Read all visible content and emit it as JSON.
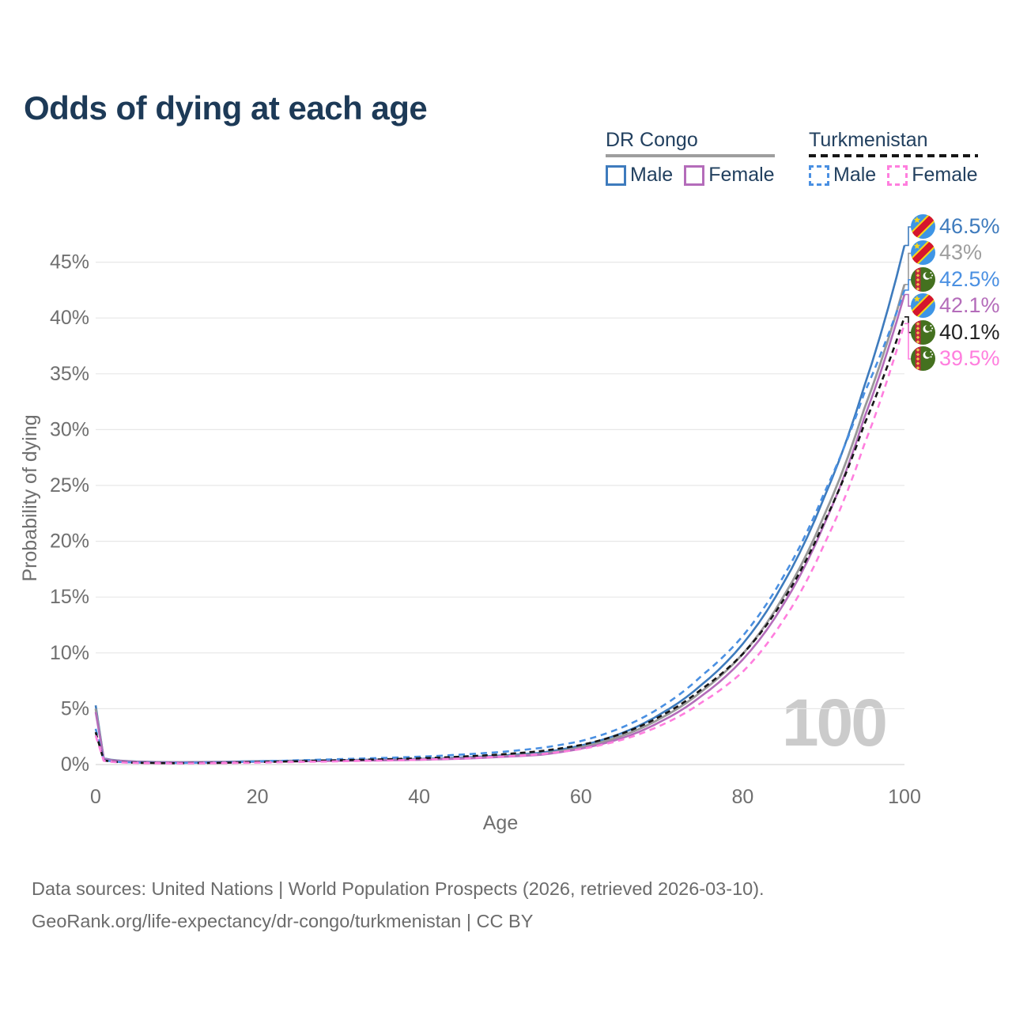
{
  "title": "Odds of dying at each age",
  "watermark": "100",
  "legend": {
    "groups": [
      {
        "name": "DR Congo",
        "style": "solid",
        "items": [
          {
            "label": "Male",
            "series": "cd_male"
          },
          {
            "label": "Female",
            "series": "cd_female"
          }
        ]
      },
      {
        "name": "Turkmenistan",
        "style": "dashed",
        "items": [
          {
            "label": "Male",
            "series": "tm_male"
          },
          {
            "label": "Female",
            "series": "tm_female"
          }
        ]
      }
    ]
  },
  "footer": {
    "line1": "Data sources: United Nations | World Population Prospects (2026, retrieved 2026-03-10).",
    "line2": "GeoRank.org/life-expectancy/dr-congo/turkmenistan | CC BY"
  },
  "chart_data": {
    "type": "line",
    "title": "Odds of dying at each age",
    "xlabel": "Age",
    "ylabel": "Probability of dying",
    "xlim": [
      0,
      100
    ],
    "ylim_pct": [
      0,
      48
    ],
    "grid": "horizontal",
    "x_ticks": [
      0,
      20,
      40,
      60,
      80,
      100
    ],
    "x_tick_labels": [
      "0",
      "20",
      "40",
      "60",
      "80",
      "100"
    ],
    "y_ticks_pct": [
      0,
      5,
      10,
      15,
      20,
      25,
      30,
      35,
      40,
      45
    ],
    "y_tick_labels": [
      "0%",
      "5%",
      "10%",
      "15%",
      "20%",
      "25%",
      "30%",
      "35%",
      "40%",
      "45%"
    ],
    "hover_age_indicator": "100",
    "ages": [
      0,
      1,
      2,
      3,
      5,
      8,
      10,
      15,
      20,
      25,
      30,
      35,
      40,
      45,
      50,
      55,
      60,
      65,
      70,
      75,
      80,
      85,
      90,
      95,
      100
    ],
    "series": [
      {
        "id": "cd_male",
        "name": "DR Congo Male",
        "color": "#3e7bbd",
        "dash": null,
        "width": 2.6,
        "flag": "cd",
        "values_pct": [
          5.3,
          0.55,
          0.42,
          0.35,
          0.27,
          0.22,
          0.21,
          0.24,
          0.3,
          0.35,
          0.39,
          0.44,
          0.5,
          0.62,
          0.8,
          1.05,
          1.7,
          2.8,
          4.6,
          7.2,
          10.8,
          16.2,
          23.8,
          33.8,
          46.5
        ]
      },
      {
        "id": "cd_both",
        "name": "DR Congo Both sexes",
        "color": "#999999",
        "dash": null,
        "width": 2.8,
        "flag": "cd",
        "values_pct": [
          5.0,
          0.52,
          0.39,
          0.33,
          0.25,
          0.21,
          0.2,
          0.22,
          0.27,
          0.32,
          0.36,
          0.4,
          0.46,
          0.56,
          0.73,
          0.95,
          1.55,
          2.55,
          4.2,
          6.6,
          9.9,
          15.0,
          22.2,
          31.8,
          43.0
        ]
      },
      {
        "id": "cd_female",
        "name": "DR Congo Female",
        "color": "#b46cba",
        "dash": null,
        "width": 2.6,
        "flag": "cd",
        "values_pct": [
          4.7,
          0.5,
          0.37,
          0.31,
          0.24,
          0.2,
          0.19,
          0.21,
          0.25,
          0.29,
          0.33,
          0.37,
          0.42,
          0.52,
          0.67,
          0.87,
          1.42,
          2.35,
          3.9,
          6.2,
          9.4,
          14.3,
          21.4,
          31.0,
          42.1
        ]
      },
      {
        "id": "tm_male",
        "name": "Turkmenistan Male",
        "color": "#4a90e2",
        "dash": "8 6",
        "width": 2.6,
        "flag": "tm",
        "values_pct": [
          3.2,
          0.4,
          0.28,
          0.23,
          0.18,
          0.15,
          0.14,
          0.18,
          0.28,
          0.38,
          0.48,
          0.58,
          0.7,
          0.88,
          1.12,
          1.48,
          2.1,
          3.3,
          5.2,
          8.0,
          11.5,
          16.8,
          24.2,
          33.2,
          42.5
        ]
      },
      {
        "id": "tm_both",
        "name": "Turkmenistan Both sexes",
        "color": "#161616",
        "dash": "7 5",
        "width": 2.6,
        "flag": "tm",
        "values_pct": [
          2.9,
          0.37,
          0.26,
          0.21,
          0.16,
          0.13,
          0.12,
          0.15,
          0.22,
          0.3,
          0.38,
          0.46,
          0.56,
          0.7,
          0.9,
          1.2,
          1.75,
          2.75,
          4.4,
          6.8,
          9.9,
          14.7,
          21.6,
          30.4,
          40.1
        ]
      },
      {
        "id": "tm_female",
        "name": "Turkmenistan Female",
        "color": "#ff7ede",
        "dash": "8 6",
        "width": 2.6,
        "flag": "tm",
        "values_pct": [
          2.6,
          0.34,
          0.24,
          0.19,
          0.14,
          0.11,
          0.1,
          0.12,
          0.17,
          0.23,
          0.29,
          0.35,
          0.43,
          0.54,
          0.7,
          0.93,
          1.38,
          2.2,
          3.55,
          5.6,
          8.3,
          12.9,
          19.6,
          28.6,
          39.5
        ]
      }
    ],
    "end_labels": [
      {
        "series": "cd_male",
        "text": "46.5%",
        "flag": "cd",
        "color": "#3e7bbd",
        "value_pct": 46.5
      },
      {
        "series": "cd_both",
        "text": "43%",
        "flag": "cd",
        "color": "#9e9e9e",
        "value_pct": 43.0
      },
      {
        "series": "tm_male",
        "text": "42.5%",
        "flag": "tm",
        "color": "#4a90e2",
        "value_pct": 42.5
      },
      {
        "series": "cd_female",
        "text": "42.1%",
        "flag": "cd",
        "color": "#b46cba",
        "value_pct": 42.1
      },
      {
        "series": "tm_both",
        "text": "40.1%",
        "flag": "tm",
        "color": "#222222",
        "value_pct": 40.1
      },
      {
        "series": "tm_female",
        "text": "39.5%",
        "flag": "tm",
        "color": "#ff7ede",
        "value_pct": 39.5
      }
    ],
    "flag_colors": {
      "cd": {
        "field": "#3e95e5",
        "band": "#d5152d",
        "accent": "#f7d618"
      },
      "tm": {
        "field": "#44711f",
        "band": "#c2243b",
        "accent": "#ffffff"
      }
    }
  }
}
